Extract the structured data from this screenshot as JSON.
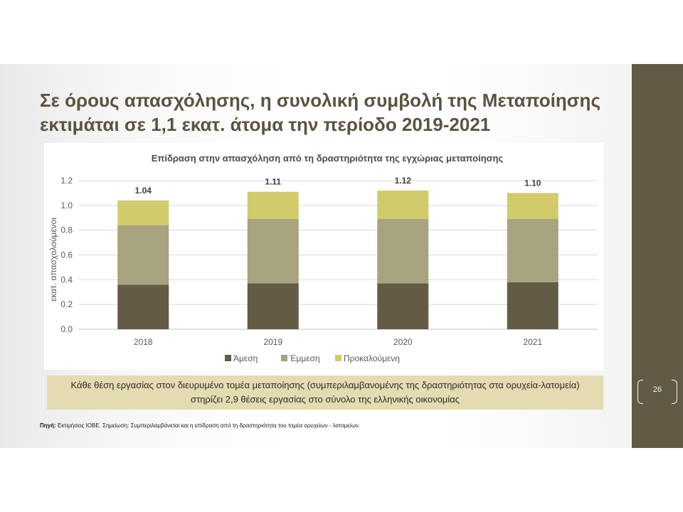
{
  "slide": {
    "title": "Σε όρους απασχόλησης, η συνολική συμβολή της Μεταποίησης εκτιμάται σε 1,1 εκατ. άτομα την περίοδο 2019-2021",
    "highlight_text": "Κάθε θέση εργασίας στον διευρυμένο τομέα μεταποίησης (συμπεριλαμβανομένης της δραστηριότητας στα ορυχεία-λατομεία) στηρίζει 2,9 θέσεις εργασίας στο σύνολο της ελληνικής οικονομίας",
    "footnote_label": "Πηγή:",
    "footnote_text": " Εκτιμήσεις ΙΟΒΕ. Σημείωση: Συμπεριλαμβάνεται και η επίδραση από τη δραστηριότητα του τομέα ορυχείων - λατομείων.",
    "page_number": "26"
  },
  "colors": {
    "title": "#5b5340",
    "side_band": "#625a45",
    "highlight_bg": "#e4dcb0"
  },
  "chart_data": {
    "type": "bar",
    "stacked": true,
    "title": "Επίδραση στην απασχόληση από τη δραστηριότητα της εγχώριας μεταποίησης",
    "xlabel": "",
    "ylabel": "εκατ. απασχολούμενοι",
    "ylim": [
      0,
      1.2
    ],
    "yticks": [
      "0.0",
      "0.2",
      "0.4",
      "0.6",
      "0.8",
      "1.0",
      "1.2"
    ],
    "grid": true,
    "legend_position": "bottom",
    "categories": [
      "2018",
      "2019",
      "2020",
      "2021"
    ],
    "series": [
      {
        "name": "Άμεση",
        "color": "#645b46",
        "values": [
          0.36,
          0.37,
          0.37,
          0.38
        ]
      },
      {
        "name": "Έμμεση",
        "color": "#a6a37e",
        "values": [
          0.48,
          0.52,
          0.52,
          0.51
        ]
      },
      {
        "name": "Προκαλούμενη",
        "color": "#d1cb6b",
        "values": [
          0.2,
          0.22,
          0.23,
          0.21
        ]
      }
    ],
    "totals": [
      "1.04",
      "1.11",
      "1.12",
      "1.10"
    ]
  }
}
